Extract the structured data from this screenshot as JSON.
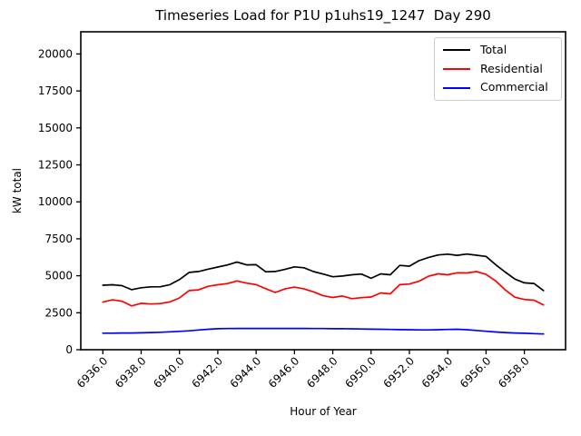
{
  "figure": {
    "background": "#ffffff",
    "spine_color": "#000000",
    "legend_border_color": "#cccccc",
    "legend_position": "upper right"
  },
  "chart_data": {
    "type": "line",
    "title": "Timeseries Load for P1U p1uhs19_1247  Day 290",
    "xlabel": "Hour of Year",
    "ylabel": "kW total",
    "xlim": [
      6934.85,
      6960.15
    ],
    "ylim": [
      0,
      21500
    ],
    "grid": false,
    "xticks": [
      6936,
      6938,
      6940,
      6942,
      6944,
      6946,
      6948,
      6950,
      6952,
      6954,
      6956,
      6958
    ],
    "xtick_labels": [
      "6936.0",
      "6938.0",
      "6940.0",
      "6942.0",
      "6944.0",
      "6946.0",
      "6948.0",
      "6950.0",
      "6952.0",
      "6954.0",
      "6956.0",
      "6958.0"
    ],
    "xtick_rotation": 45,
    "yticks": [
      0,
      2500,
      5000,
      7500,
      10000,
      12500,
      15000,
      17500,
      20000
    ],
    "ytick_labels": [
      "0",
      "2500",
      "5000",
      "7500",
      "10000",
      "12500",
      "15000",
      "17500",
      "20000"
    ],
    "x": [
      6936.0,
      6936.5,
      6937.0,
      6937.5,
      6938.0,
      6938.5,
      6939.0,
      6939.5,
      6940.0,
      6940.5,
      6941.0,
      6941.5,
      6942.0,
      6942.5,
      6943.0,
      6943.5,
      6944.0,
      6944.5,
      6945.0,
      6945.5,
      6946.0,
      6946.5,
      6947.0,
      6947.5,
      6948.0,
      6948.5,
      6949.0,
      6949.5,
      6950.0,
      6950.5,
      6951.0,
      6951.5,
      6952.0,
      6952.5,
      6953.0,
      6953.5,
      6954.0,
      6954.5,
      6955.0,
      6955.5,
      6956.0,
      6956.5,
      6957.0,
      6957.5,
      6958.0,
      6958.5,
      6959.0
    ],
    "series": [
      {
        "name": "Total",
        "color": "#000000",
        "values": [
          4360,
          4390,
          4330,
          4060,
          4190,
          4250,
          4260,
          4400,
          4740,
          5230,
          5290,
          5450,
          5590,
          5730,
          5930,
          5740,
          5750,
          5270,
          5290,
          5430,
          5600,
          5540,
          5280,
          5120,
          4930,
          4980,
          5070,
          5120,
          4830,
          5130,
          5070,
          5700,
          5650,
          6020,
          6240,
          6410,
          6460,
          6380,
          6470,
          6390,
          6310,
          5750,
          5250,
          4780,
          4520,
          4480,
          4000
        ]
      },
      {
        "name": "Residential",
        "color": "#ff0000",
        "values": [
          3220,
          3370,
          3280,
          2960,
          3140,
          3090,
          3120,
          3230,
          3500,
          4000,
          4050,
          4290,
          4390,
          4470,
          4650,
          4500,
          4400,
          4130,
          3870,
          4110,
          4230,
          4110,
          3910,
          3650,
          3530,
          3630,
          3450,
          3520,
          3560,
          3840,
          3780,
          4400,
          4440,
          4630,
          4970,
          5130,
          5070,
          5200,
          5190,
          5280,
          5090,
          4650,
          4050,
          3550,
          3400,
          3350,
          3020
        ]
      },
      {
        "name": "Commercial",
        "color": "#0000ff",
        "values": [
          1120,
          1120,
          1130,
          1130,
          1140,
          1160,
          1180,
          1210,
          1240,
          1280,
          1330,
          1380,
          1420,
          1430,
          1440,
          1440,
          1440,
          1440,
          1440,
          1440,
          1440,
          1440,
          1430,
          1430,
          1420,
          1420,
          1410,
          1400,
          1390,
          1380,
          1370,
          1360,
          1350,
          1340,
          1340,
          1350,
          1370,
          1380,
          1350,
          1300,
          1250,
          1200,
          1160,
          1130,
          1110,
          1090,
          1060
        ]
      }
    ]
  }
}
